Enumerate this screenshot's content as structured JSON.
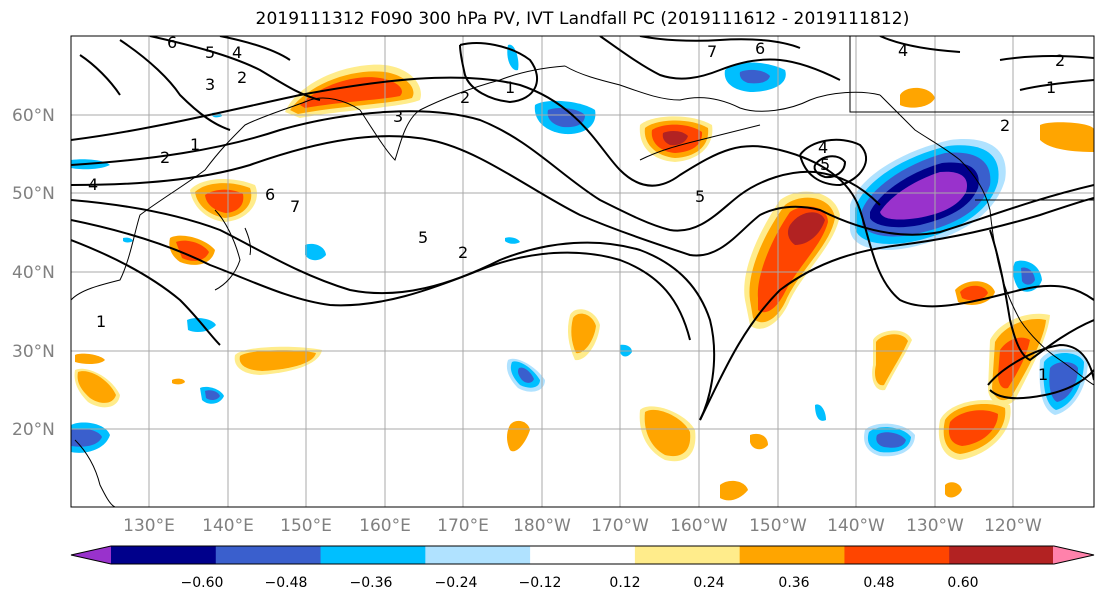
{
  "title": "2019111312 F090 300 hPa PV, IVT Landfall PC (2019111612 - 2019111812)",
  "map": {
    "lat_labels": [
      "60°N",
      "50°N",
      "40°N",
      "30°N",
      "20°N"
    ],
    "lon_labels": [
      "130°E",
      "140°E",
      "150°E",
      "160°E",
      "170°E",
      "180°W",
      "170°W",
      "160°W",
      "150°W",
      "140°W",
      "130°W",
      "120°W"
    ],
    "contour_labels": [
      "6",
      "5",
      "4",
      "3",
      "2",
      "1",
      "2",
      "1",
      "7",
      "6",
      "4",
      "2",
      "1",
      "2",
      "1",
      "3",
      "4",
      "5",
      "5",
      "2",
      "4",
      "6",
      "7",
      "5",
      "2",
      "1"
    ]
  },
  "colorbar": {
    "ticks": [
      "−0.60",
      "−0.48",
      "−0.36",
      "−0.24",
      "−0.12",
      "0.12",
      "0.24",
      "0.36",
      "0.48",
      "0.60"
    ],
    "colors": [
      "#9932cc",
      "#00008b",
      "#3a5fcd",
      "#00bfff",
      "#b0e2ff",
      "#ffffff",
      "#ffec8b",
      "#ffa500",
      "#ff4500",
      "#b22222",
      "#ff82ab"
    ]
  }
}
